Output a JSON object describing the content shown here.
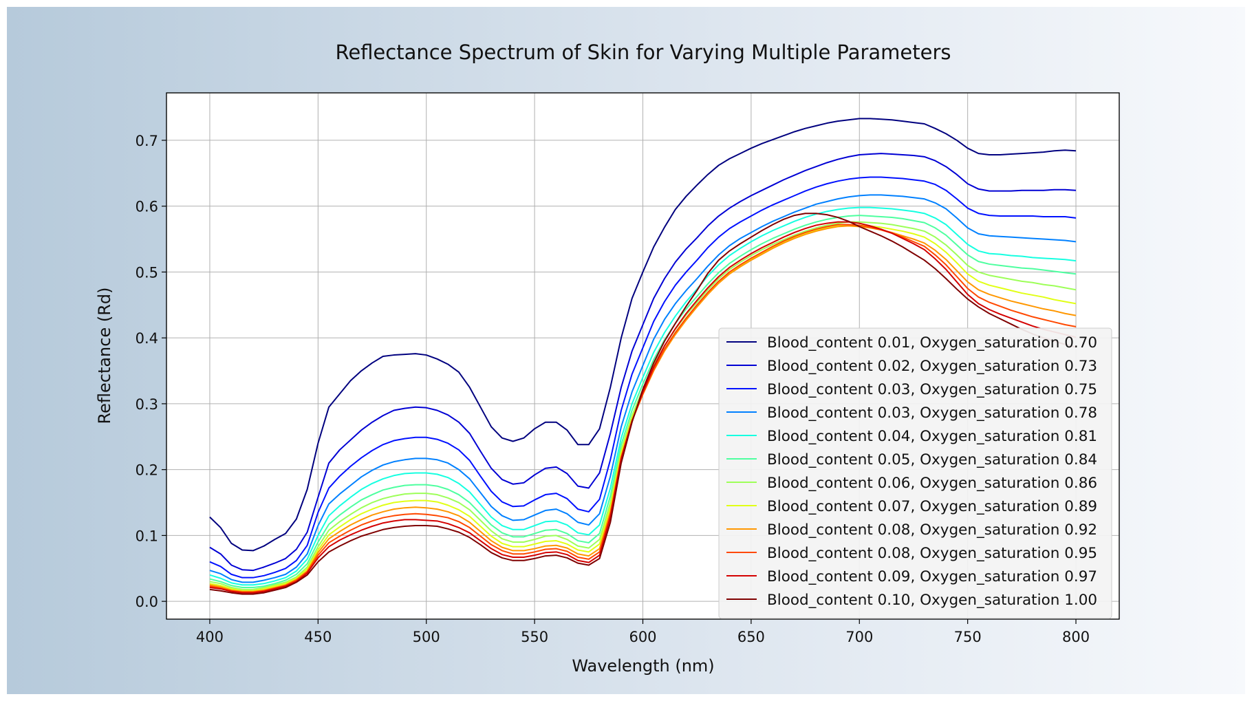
{
  "chart_data": {
    "type": "line",
    "title": "Reflectance Spectrum of Skin for Varying Multiple Parameters",
    "xlabel": "Wavelength (nm)",
    "ylabel": "Reflectance (Rd)",
    "xlim": [
      380,
      820
    ],
    "ylim": [
      -0.027,
      0.772
    ],
    "xticks": [
      400,
      450,
      500,
      550,
      600,
      650,
      700,
      750,
      800
    ],
    "yticks": [
      0.0,
      0.1,
      0.2,
      0.3,
      0.4,
      0.5,
      0.6,
      0.7
    ],
    "ytick_labels": [
      "0.0",
      "0.1",
      "0.2",
      "0.3",
      "0.4",
      "0.5",
      "0.6",
      "0.7"
    ],
    "grid": true,
    "legend_position": "lower-right",
    "x": [
      400,
      405,
      410,
      415,
      420,
      425,
      430,
      435,
      440,
      445,
      450,
      455,
      460,
      465,
      470,
      475,
      480,
      485,
      490,
      495,
      500,
      505,
      510,
      515,
      520,
      525,
      530,
      535,
      540,
      545,
      550,
      555,
      560,
      565,
      570,
      575,
      580,
      585,
      590,
      595,
      600,
      605,
      610,
      615,
      620,
      625,
      630,
      635,
      640,
      645,
      650,
      655,
      660,
      665,
      670,
      675,
      680,
      685,
      690,
      695,
      700,
      705,
      710,
      715,
      720,
      725,
      730,
      735,
      740,
      745,
      750,
      755,
      760,
      765,
      770,
      775,
      780,
      785,
      790,
      795,
      800
    ],
    "series": [
      {
        "name": "Blood_content 0.01, Oxygen_saturation 0.70",
        "color": "#00007f",
        "values": [
          0.128,
          0.112,
          0.088,
          0.078,
          0.077,
          0.084,
          0.094,
          0.103,
          0.125,
          0.17,
          0.24,
          0.295,
          0.315,
          0.335,
          0.35,
          0.362,
          0.372,
          0.374,
          0.375,
          0.376,
          0.374,
          0.368,
          0.36,
          0.348,
          0.325,
          0.295,
          0.265,
          0.248,
          0.243,
          0.248,
          0.262,
          0.272,
          0.272,
          0.26,
          0.238,
          0.238,
          0.262,
          0.325,
          0.4,
          0.46,
          0.5,
          0.538,
          0.568,
          0.595,
          0.615,
          0.632,
          0.648,
          0.662,
          0.672,
          0.68,
          0.688,
          0.695,
          0.701,
          0.707,
          0.713,
          0.718,
          0.722,
          0.726,
          0.729,
          0.731,
          0.733,
          0.733,
          0.732,
          0.731,
          0.729,
          0.727,
          0.725,
          0.718,
          0.71,
          0.7,
          0.688,
          0.68,
          0.678,
          0.678,
          0.679,
          0.68,
          0.681,
          0.682,
          0.684,
          0.685,
          0.684
        ]
      },
      {
        "name": "Blood_content 0.02, Oxygen_saturation 0.73",
        "color": "#0000d4",
        "values": [
          0.082,
          0.072,
          0.055,
          0.048,
          0.047,
          0.052,
          0.058,
          0.065,
          0.079,
          0.105,
          0.158,
          0.21,
          0.23,
          0.245,
          0.26,
          0.272,
          0.282,
          0.29,
          0.293,
          0.295,
          0.294,
          0.29,
          0.283,
          0.272,
          0.255,
          0.228,
          0.202,
          0.185,
          0.178,
          0.18,
          0.192,
          0.202,
          0.204,
          0.194,
          0.175,
          0.172,
          0.195,
          0.255,
          0.325,
          0.38,
          0.42,
          0.46,
          0.49,
          0.515,
          0.535,
          0.552,
          0.57,
          0.585,
          0.597,
          0.607,
          0.616,
          0.624,
          0.632,
          0.64,
          0.647,
          0.654,
          0.66,
          0.666,
          0.671,
          0.675,
          0.678,
          0.679,
          0.68,
          0.679,
          0.678,
          0.677,
          0.675,
          0.669,
          0.66,
          0.648,
          0.634,
          0.626,
          0.623,
          0.623,
          0.623,
          0.624,
          0.624,
          0.624,
          0.625,
          0.625,
          0.624
        ]
      },
      {
        "name": "Blood_content 0.03, Oxygen_saturation 0.75",
        "color": "#0010ff",
        "values": [
          0.06,
          0.053,
          0.041,
          0.036,
          0.036,
          0.039,
          0.044,
          0.05,
          0.062,
          0.085,
          0.135,
          0.172,
          0.19,
          0.205,
          0.218,
          0.229,
          0.238,
          0.244,
          0.247,
          0.249,
          0.249,
          0.246,
          0.24,
          0.23,
          0.214,
          0.19,
          0.167,
          0.151,
          0.144,
          0.145,
          0.154,
          0.162,
          0.164,
          0.156,
          0.14,
          0.136,
          0.155,
          0.215,
          0.29,
          0.345,
          0.385,
          0.425,
          0.455,
          0.48,
          0.5,
          0.518,
          0.537,
          0.553,
          0.566,
          0.576,
          0.585,
          0.594,
          0.602,
          0.609,
          0.616,
          0.623,
          0.629,
          0.634,
          0.638,
          0.641,
          0.643,
          0.644,
          0.644,
          0.643,
          0.642,
          0.64,
          0.638,
          0.633,
          0.624,
          0.611,
          0.597,
          0.589,
          0.586,
          0.585,
          0.585,
          0.585,
          0.585,
          0.584,
          0.584,
          0.584,
          0.582
        ]
      },
      {
        "name": "Blood_content 0.03, Oxygen_saturation 0.78",
        "color": "#0080ff",
        "values": [
          0.047,
          0.042,
          0.033,
          0.029,
          0.029,
          0.032,
          0.036,
          0.041,
          0.052,
          0.072,
          0.115,
          0.148,
          0.163,
          0.176,
          0.189,
          0.199,
          0.207,
          0.212,
          0.215,
          0.217,
          0.217,
          0.215,
          0.21,
          0.2,
          0.186,
          0.165,
          0.144,
          0.13,
          0.123,
          0.124,
          0.131,
          0.138,
          0.14,
          0.133,
          0.12,
          0.116,
          0.133,
          0.19,
          0.265,
          0.318,
          0.358,
          0.398,
          0.428,
          0.452,
          0.472,
          0.49,
          0.509,
          0.526,
          0.54,
          0.551,
          0.56,
          0.569,
          0.577,
          0.584,
          0.591,
          0.597,
          0.603,
          0.607,
          0.611,
          0.614,
          0.616,
          0.617,
          0.617,
          0.616,
          0.615,
          0.613,
          0.611,
          0.605,
          0.596,
          0.582,
          0.567,
          0.558,
          0.555,
          0.554,
          0.553,
          0.552,
          0.551,
          0.55,
          0.549,
          0.548,
          0.546
        ]
      },
      {
        "name": "Blood_content 0.04, Oxygen_saturation 0.81",
        "color": "#15ffe1",
        "values": [
          0.04,
          0.035,
          0.028,
          0.025,
          0.025,
          0.027,
          0.031,
          0.036,
          0.046,
          0.064,
          0.1,
          0.13,
          0.145,
          0.158,
          0.17,
          0.179,
          0.186,
          0.191,
          0.194,
          0.195,
          0.195,
          0.193,
          0.188,
          0.179,
          0.166,
          0.147,
          0.128,
          0.115,
          0.109,
          0.109,
          0.115,
          0.121,
          0.122,
          0.116,
          0.104,
          0.101,
          0.116,
          0.172,
          0.248,
          0.3,
          0.34,
          0.378,
          0.408,
          0.433,
          0.455,
          0.474,
          0.494,
          0.511,
          0.525,
          0.536,
          0.546,
          0.555,
          0.563,
          0.57,
          0.577,
          0.583,
          0.588,
          0.592,
          0.595,
          0.597,
          0.598,
          0.598,
          0.597,
          0.596,
          0.594,
          0.592,
          0.589,
          0.582,
          0.572,
          0.557,
          0.542,
          0.532,
          0.528,
          0.527,
          0.525,
          0.524,
          0.522,
          0.521,
          0.52,
          0.519,
          0.517
        ]
      },
      {
        "name": "Blood_content 0.05, Oxygen_saturation 0.84",
        "color": "#4dff9f",
        "values": [
          0.034,
          0.03,
          0.024,
          0.021,
          0.021,
          0.023,
          0.027,
          0.032,
          0.041,
          0.057,
          0.09,
          0.117,
          0.131,
          0.143,
          0.154,
          0.162,
          0.169,
          0.173,
          0.176,
          0.177,
          0.177,
          0.175,
          0.17,
          0.162,
          0.15,
          0.133,
          0.116,
          0.104,
          0.098,
          0.098,
          0.103,
          0.108,
          0.109,
          0.103,
          0.092,
          0.089,
          0.103,
          0.16,
          0.238,
          0.29,
          0.33,
          0.367,
          0.397,
          0.422,
          0.444,
          0.463,
          0.482,
          0.499,
          0.513,
          0.524,
          0.534,
          0.543,
          0.551,
          0.558,
          0.565,
          0.571,
          0.576,
          0.58,
          0.583,
          0.585,
          0.586,
          0.585,
          0.584,
          0.583,
          0.581,
          0.578,
          0.575,
          0.567,
          0.556,
          0.541,
          0.526,
          0.516,
          0.512,
          0.51,
          0.508,
          0.506,
          0.505,
          0.503,
          0.501,
          0.499,
          0.497
        ]
      },
      {
        "name": "Blood_content 0.06, Oxygen_saturation 0.86",
        "color": "#9dff58",
        "values": [
          0.03,
          0.027,
          0.021,
          0.018,
          0.018,
          0.021,
          0.025,
          0.029,
          0.037,
          0.052,
          0.083,
          0.108,
          0.121,
          0.132,
          0.142,
          0.15,
          0.156,
          0.16,
          0.163,
          0.164,
          0.164,
          0.162,
          0.157,
          0.15,
          0.139,
          0.123,
          0.107,
          0.095,
          0.09,
          0.09,
          0.094,
          0.099,
          0.1,
          0.094,
          0.084,
          0.081,
          0.094,
          0.15,
          0.23,
          0.282,
          0.322,
          0.358,
          0.388,
          0.413,
          0.435,
          0.454,
          0.473,
          0.49,
          0.504,
          0.515,
          0.525,
          0.534,
          0.542,
          0.549,
          0.556,
          0.562,
          0.567,
          0.571,
          0.574,
          0.576,
          0.576,
          0.575,
          0.574,
          0.572,
          0.569,
          0.566,
          0.562,
          0.553,
          0.541,
          0.526,
          0.51,
          0.5,
          0.495,
          0.492,
          0.489,
          0.486,
          0.484,
          0.481,
          0.479,
          0.476,
          0.473
        ]
      },
      {
        "name": "Blood_content 0.07, Oxygen_saturation 0.89",
        "color": "#e1ff15",
        "values": [
          0.027,
          0.024,
          0.019,
          0.016,
          0.016,
          0.019,
          0.023,
          0.027,
          0.035,
          0.049,
          0.078,
          0.101,
          0.113,
          0.124,
          0.133,
          0.14,
          0.146,
          0.15,
          0.152,
          0.153,
          0.153,
          0.151,
          0.146,
          0.139,
          0.129,
          0.114,
          0.099,
          0.088,
          0.083,
          0.083,
          0.087,
          0.091,
          0.092,
          0.087,
          0.078,
          0.075,
          0.087,
          0.143,
          0.225,
          0.278,
          0.318,
          0.353,
          0.383,
          0.408,
          0.43,
          0.449,
          0.468,
          0.485,
          0.499,
          0.51,
          0.52,
          0.529,
          0.537,
          0.545,
          0.552,
          0.558,
          0.563,
          0.567,
          0.57,
          0.571,
          0.571,
          0.57,
          0.568,
          0.565,
          0.562,
          0.558,
          0.553,
          0.543,
          0.53,
          0.514,
          0.497,
          0.486,
          0.48,
          0.476,
          0.472,
          0.468,
          0.465,
          0.462,
          0.458,
          0.455,
          0.452
        ]
      },
      {
        "name": "Blood_content 0.08, Oxygen_saturation 0.92",
        "color": "#ff9700",
        "values": [
          0.025,
          0.022,
          0.017,
          0.015,
          0.015,
          0.017,
          0.021,
          0.025,
          0.033,
          0.046,
          0.074,
          0.095,
          0.106,
          0.116,
          0.124,
          0.131,
          0.136,
          0.14,
          0.142,
          0.143,
          0.142,
          0.14,
          0.136,
          0.13,
          0.12,
          0.106,
          0.092,
          0.082,
          0.077,
          0.077,
          0.08,
          0.084,
          0.085,
          0.081,
          0.072,
          0.069,
          0.08,
          0.136,
          0.22,
          0.274,
          0.314,
          0.35,
          0.38,
          0.405,
          0.427,
          0.447,
          0.466,
          0.483,
          0.497,
          0.508,
          0.518,
          0.527,
          0.536,
          0.544,
          0.551,
          0.557,
          0.562,
          0.566,
          0.569,
          0.57,
          0.569,
          0.567,
          0.564,
          0.56,
          0.555,
          0.55,
          0.544,
          0.533,
          0.519,
          0.502,
          0.485,
          0.473,
          0.466,
          0.461,
          0.456,
          0.452,
          0.448,
          0.444,
          0.441,
          0.437,
          0.434
        ]
      },
      {
        "name": "Blood_content 0.08, Oxygen_saturation 0.95",
        "color": "#ff4800",
        "values": [
          0.023,
          0.02,
          0.016,
          0.014,
          0.014,
          0.016,
          0.02,
          0.024,
          0.032,
          0.045,
          0.07,
          0.089,
          0.099,
          0.108,
          0.116,
          0.122,
          0.127,
          0.13,
          0.132,
          0.133,
          0.132,
          0.13,
          0.127,
          0.121,
          0.112,
          0.099,
          0.086,
          0.077,
          0.072,
          0.072,
          0.075,
          0.079,
          0.08,
          0.076,
          0.067,
          0.064,
          0.075,
          0.132,
          0.218,
          0.274,
          0.315,
          0.352,
          0.383,
          0.408,
          0.43,
          0.45,
          0.469,
          0.486,
          0.5,
          0.511,
          0.521,
          0.53,
          0.539,
          0.547,
          0.554,
          0.56,
          0.565,
          0.569,
          0.572,
          0.572,
          0.571,
          0.568,
          0.564,
          0.559,
          0.553,
          0.546,
          0.539,
          0.526,
          0.511,
          0.493,
          0.475,
          0.462,
          0.454,
          0.448,
          0.442,
          0.437,
          0.432,
          0.428,
          0.424,
          0.42,
          0.417
        ]
      },
      {
        "name": "Blood_content 0.09, Oxygen_saturation 0.97",
        "color": "#d40000",
        "values": [
          0.021,
          0.019,
          0.015,
          0.013,
          0.013,
          0.015,
          0.019,
          0.023,
          0.03,
          0.043,
          0.066,
          0.083,
          0.093,
          0.101,
          0.108,
          0.114,
          0.119,
          0.122,
          0.124,
          0.124,
          0.123,
          0.122,
          0.118,
          0.112,
          0.104,
          0.092,
          0.08,
          0.071,
          0.067,
          0.067,
          0.07,
          0.074,
          0.075,
          0.071,
          0.062,
          0.059,
          0.07,
          0.128,
          0.216,
          0.274,
          0.318,
          0.356,
          0.388,
          0.414,
          0.437,
          0.457,
          0.476,
          0.493,
          0.507,
          0.518,
          0.528,
          0.537,
          0.545,
          0.553,
          0.56,
          0.566,
          0.571,
          0.574,
          0.576,
          0.576,
          0.574,
          0.57,
          0.565,
          0.559,
          0.551,
          0.543,
          0.534,
          0.52,
          0.504,
          0.485,
          0.466,
          0.452,
          0.443,
          0.436,
          0.43,
          0.424,
          0.418,
          0.413,
          0.409,
          0.405,
          0.401
        ]
      },
      {
        "name": "Blood_content 0.10, Oxygen_saturation 1.00",
        "color": "#7f0000",
        "values": [
          0.018,
          0.016,
          0.013,
          0.011,
          0.011,
          0.013,
          0.017,
          0.021,
          0.029,
          0.04,
          0.06,
          0.075,
          0.084,
          0.092,
          0.099,
          0.104,
          0.109,
          0.112,
          0.114,
          0.115,
          0.115,
          0.114,
          0.11,
          0.105,
          0.097,
          0.086,
          0.074,
          0.066,
          0.062,
          0.062,
          0.065,
          0.069,
          0.07,
          0.066,
          0.058,
          0.055,
          0.065,
          0.12,
          0.21,
          0.272,
          0.322,
          0.362,
          0.395,
          0.422,
          0.448,
          0.472,
          0.498,
          0.518,
          0.532,
          0.543,
          0.553,
          0.563,
          0.572,
          0.58,
          0.586,
          0.589,
          0.589,
          0.587,
          0.583,
          0.577,
          0.569,
          0.562,
          0.555,
          0.547,
          0.538,
          0.528,
          0.518,
          0.505,
          0.49,
          0.474,
          0.459,
          0.447,
          0.437,
          0.429,
          0.421,
          0.413,
          0.406,
          0.4,
          0.395,
          0.39,
          0.386
        ]
      }
    ]
  }
}
